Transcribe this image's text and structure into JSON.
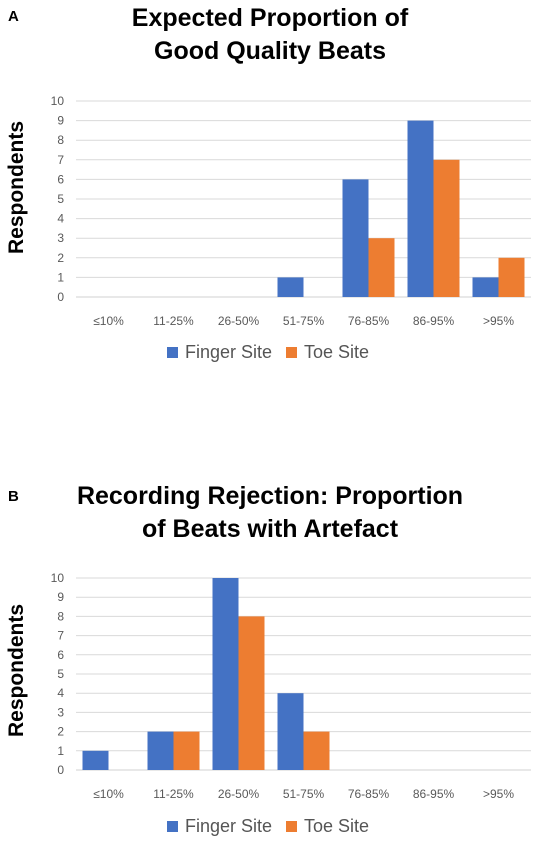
{
  "chart_data": [
    {
      "panel_label": "A",
      "type": "bar",
      "title": "Expected Proportion of Good Quality Beats",
      "title_lines": [
        "Expected Proportion of",
        "Good Quality Beats"
      ],
      "xlabel": "",
      "ylabel": "Respondents",
      "ylim": [
        0,
        10
      ],
      "yticks": [
        0,
        1,
        2,
        3,
        4,
        5,
        6,
        7,
        8,
        9,
        10
      ],
      "grid": true,
      "legend_position": "bottom",
      "categories": [
        "≤10%",
        "11-25%",
        "26-50%",
        "51-75%",
        "76-85%",
        "86-95%",
        ">95%"
      ],
      "series": [
        {
          "name": "Finger Site",
          "color": "#4472C4",
          "values": [
            0,
            0,
            0,
            1,
            6,
            9,
            1
          ]
        },
        {
          "name": "Toe Site",
          "color": "#ED7D31",
          "values": [
            0,
            0,
            0,
            0,
            3,
            7,
            2
          ]
        }
      ]
    },
    {
      "panel_label": "B",
      "type": "bar",
      "title": "Recording Rejection: Proportion of Beats with Artefact",
      "title_lines": [
        "Recording Rejection: Proportion",
        "of Beats with Artefact"
      ],
      "xlabel": "",
      "ylabel": "Respondents",
      "ylim": [
        0,
        10
      ],
      "yticks": [
        0,
        1,
        2,
        3,
        4,
        5,
        6,
        7,
        8,
        9,
        10
      ],
      "grid": true,
      "legend_position": "bottom",
      "categories": [
        "≤10%",
        "11-25%",
        "26-50%",
        "51-75%",
        "76-85%",
        "86-95%",
        ">95%"
      ],
      "series": [
        {
          "name": "Finger Site",
          "color": "#4472C4",
          "values": [
            1,
            2,
            10,
            4,
            0,
            0,
            0
          ]
        },
        {
          "name": "Toe Site",
          "color": "#ED7D31",
          "values": [
            0,
            2,
            8,
            2,
            0,
            0,
            0
          ]
        }
      ]
    }
  ]
}
